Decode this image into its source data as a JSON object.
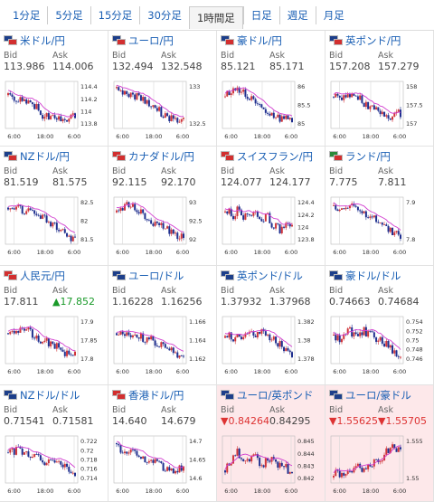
{
  "tabs": [
    {
      "label": "1分足",
      "active": false
    },
    {
      "label": "5分足",
      "active": false
    },
    {
      "label": "15分足",
      "active": false
    },
    {
      "label": "30分足",
      "active": false
    },
    {
      "label": "1時間足",
      "active": true
    },
    {
      "label": "日足",
      "active": false
    },
    {
      "label": "週足",
      "active": false
    },
    {
      "label": "月足",
      "active": false
    }
  ],
  "labels": {
    "bid": "Bid",
    "ask": "Ask"
  },
  "colors": {
    "candle_up": "#d0353a",
    "candle_down": "#1f2f8f",
    "ma_line": "#d23fd0",
    "ma_line2": "#35a0c8",
    "grid": "#d8d8d8",
    "highlight_bg": "#fde8ea"
  },
  "pairs": [
    {
      "name": "米ドル/円",
      "flags": [
        "#1d3f8a",
        "#d22f2f"
      ],
      "bid": "113.986",
      "ask": "114.006",
      "yticks": [
        "114.4",
        "114.2",
        "114",
        "113.8"
      ],
      "xticks": [
        "6:00",
        "18:00",
        "6:00"
      ]
    },
    {
      "name": "ユーロ/円",
      "flags": [
        "#1d3f8a",
        "#d22f2f"
      ],
      "bid": "132.494",
      "ask": "132.548",
      "yticks": [
        "133",
        "132.5"
      ],
      "xticks": [
        "6:00",
        "18:00",
        "6:00"
      ]
    },
    {
      "name": "豪ドル/円",
      "flags": [
        "#1d3f8a",
        "#d22f2f"
      ],
      "bid": "85.121",
      "ask": "85.171",
      "yticks": [
        "86",
        "85.5",
        "85"
      ],
      "xticks": [
        "6:00",
        "18:00",
        "6:00"
      ]
    },
    {
      "name": "英ポンド/円",
      "flags": [
        "#1d3f8a",
        "#d22f2f"
      ],
      "bid": "157.208",
      "ask": "157.279",
      "yticks": [
        "158",
        "157.5",
        "157"
      ],
      "xticks": [
        "6:00",
        "18:00",
        "6:00"
      ]
    },
    {
      "name": "NZドル/円",
      "flags": [
        "#1d3f8a",
        "#d22f2f"
      ],
      "bid": "81.519",
      "ask": "81.575",
      "yticks": [
        "82.5",
        "82",
        "81.5"
      ],
      "xticks": [
        "6:00",
        "18:00",
        "6:00"
      ]
    },
    {
      "name": "カナダドル/円",
      "flags": [
        "#d22f2f",
        "#d22f2f"
      ],
      "bid": "92.115",
      "ask": "92.170",
      "yticks": [
        "93",
        "92.5",
        "92"
      ],
      "xticks": [
        "6:00",
        "18:00",
        "6:00"
      ]
    },
    {
      "name": "スイスフラン/円",
      "flags": [
        "#d22f2f",
        "#d22f2f"
      ],
      "bid": "124.077",
      "ask": "124.177",
      "yticks": [
        "124.4",
        "124.2",
        "124",
        "123.8"
      ],
      "xticks": [
        "6:00",
        "18:00",
        "6:00"
      ]
    },
    {
      "name": "ランド/円",
      "flags": [
        "#2a8a3a",
        "#d22f2f"
      ],
      "bid": "7.775",
      "ask": "7.811",
      "yticks": [
        "7.9",
        "7.8"
      ],
      "xticks": [
        "6:00",
        "18:00",
        "6:00"
      ]
    },
    {
      "name": "人民元/円",
      "flags": [
        "#d22f2f",
        "#d22f2f"
      ],
      "bid": "17.811",
      "ask": "17.852",
      "ask_dir": "up",
      "ask_arrow": "▲",
      "yticks": [
        "17.9",
        "17.85",
        "17.8"
      ],
      "xticks": [
        "6:00",
        "18:00",
        "6:00"
      ]
    },
    {
      "name": "ユーロ/ドル",
      "flags": [
        "#1d3f8a",
        "#1d3f8a"
      ],
      "bid": "1.16228",
      "ask": "1.16256",
      "yticks": [
        "1.166",
        "1.164",
        "1.162"
      ],
      "xticks": [
        "6:00",
        "18:00",
        "6:00"
      ]
    },
    {
      "name": "英ポンド/ドル",
      "flags": [
        "#1d3f8a",
        "#1d3f8a"
      ],
      "bid": "1.37932",
      "ask": "1.37968",
      "yticks": [
        "1.382",
        "1.38",
        "1.378"
      ],
      "xticks": [
        "6:00",
        "18:00",
        "6:00"
      ]
    },
    {
      "name": "豪ドル/ドル",
      "flags": [
        "#1d3f8a",
        "#1d3f8a"
      ],
      "bid": "0.74663",
      "ask": "0.74684",
      "yticks": [
        "0.754",
        "0.752",
        "0.75",
        "0.748",
        "0.746"
      ],
      "xticks": [
        "6:00",
        "18:00",
        "6:00"
      ]
    },
    {
      "name": "NZドル/ドル",
      "flags": [
        "#1d3f8a",
        "#1d3f8a"
      ],
      "bid": "0.71541",
      "ask": "0.71581",
      "yticks": [
        "0.722",
        "0.72",
        "0.718",
        "0.716",
        "0.714"
      ],
      "xticks": [
        "6:00",
        "18:00",
        "6:00"
      ]
    },
    {
      "name": "香港ドル/円",
      "flags": [
        "#d22f2f",
        "#d22f2f"
      ],
      "bid": "14.640",
      "ask": "14.679",
      "yticks": [
        "14.7",
        "14.65",
        "14.6"
      ],
      "xticks": [
        "6:00",
        "18:00",
        "6:00"
      ]
    },
    {
      "name": "ユーロ/英ポンド",
      "flags": [
        "#1d3f8a",
        "#1d3f8a"
      ],
      "bid": "0.84264",
      "bid_dir": "down",
      "bid_arrow": "▼",
      "ask": "0.84295",
      "highlight": true,
      "yticks": [
        "0.845",
        "0.844",
        "0.843",
        "0.842"
      ],
      "xticks": [
        "6:00",
        "18:00",
        "6:00"
      ]
    },
    {
      "name": "ユーロ/豪ドル",
      "flags": [
        "#1d3f8a",
        "#1d3f8a"
      ],
      "bid": "1.55625",
      "bid_dir": "down",
      "bid_arrow": "▼",
      "ask": "1.55705",
      "ask_dir": "down",
      "ask_arrow": "▼",
      "highlight": true,
      "yticks": [
        "1.555",
        "1.55"
      ],
      "xticks": [
        "6:00",
        "18:00",
        "6:00"
      ]
    }
  ]
}
